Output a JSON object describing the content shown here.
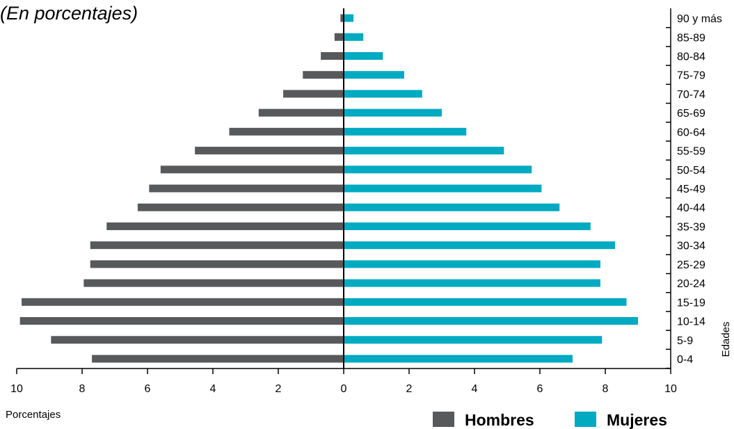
{
  "subtitle": "(En porcentajes)",
  "chart_data": {
    "type": "bar",
    "orientation": "horizontal",
    "categories": [
      "0-4",
      "5-9",
      "10-14",
      "15-19",
      "20-24",
      "25-29",
      "30-34",
      "35-39",
      "40-44",
      "45-49",
      "50-54",
      "55-59",
      "60-64",
      "65-69",
      "70-74",
      "75-79",
      "80-84",
      "85-89",
      "90 y más"
    ],
    "series": [
      {
        "name": "Hombres",
        "values": [
          7.7,
          8.95,
          9.9,
          9.85,
          7.95,
          7.75,
          7.75,
          7.25,
          6.3,
          5.95,
          5.6,
          4.55,
          3.5,
          2.6,
          1.85,
          1.25,
          0.7,
          0.28,
          0.1
        ]
      },
      {
        "name": "Mujeres",
        "values": [
          7.0,
          7.9,
          9.0,
          8.65,
          7.85,
          7.85,
          8.3,
          7.55,
          6.6,
          6.05,
          5.75,
          4.9,
          3.75,
          3.0,
          2.4,
          1.85,
          1.2,
          0.6,
          0.3
        ]
      }
    ],
    "xlabel": "Porcentajes",
    "ylabel": "Edades",
    "xticks": [
      "10",
      "8",
      "6",
      "4",
      "2",
      "0",
      "2",
      "4",
      "6",
      "8",
      "10"
    ],
    "xlim": [
      -10,
      10
    ],
    "grid": false,
    "legend_position": "bottom-right",
    "colors": {
      "Hombres": "#58595b",
      "Mujeres": "#00aac1"
    }
  }
}
